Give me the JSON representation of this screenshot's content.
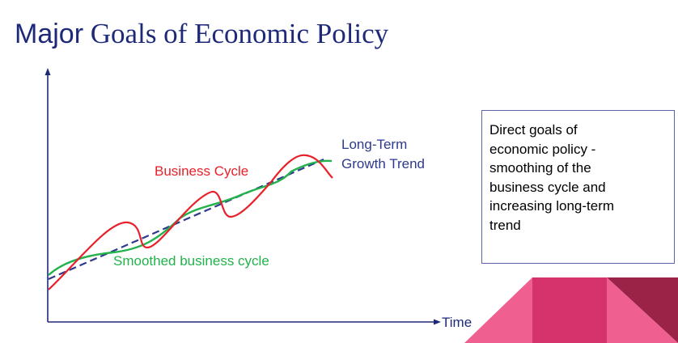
{
  "title": {
    "part1": "Major",
    "part2": "Goals of Economic Policy"
  },
  "labels": {
    "business_cycle": "Business Cycle",
    "growth_trend_line1": "Long-Term",
    "growth_trend_line2": "Growth Trend",
    "smoothed_cycle": "Smoothed business cycle",
    "x_axis": "Time"
  },
  "info_box": {
    "lines": [
      "Direct goals of",
      "economic policy -",
      "smoothing of the",
      "business cycle and",
      "increasing long-term",
      "trend"
    ]
  },
  "colors": {
    "title": "#1e2a78",
    "axis": "#1e2a78",
    "business_cycle": "#e8202a",
    "growth_trend": "#2e3a8c",
    "smoothed_cycle": "#22b24c",
    "decor_light_pink": "#ef5f8f",
    "decor_pink": "#d6336c",
    "decor_dark": "#9b2348"
  }
}
